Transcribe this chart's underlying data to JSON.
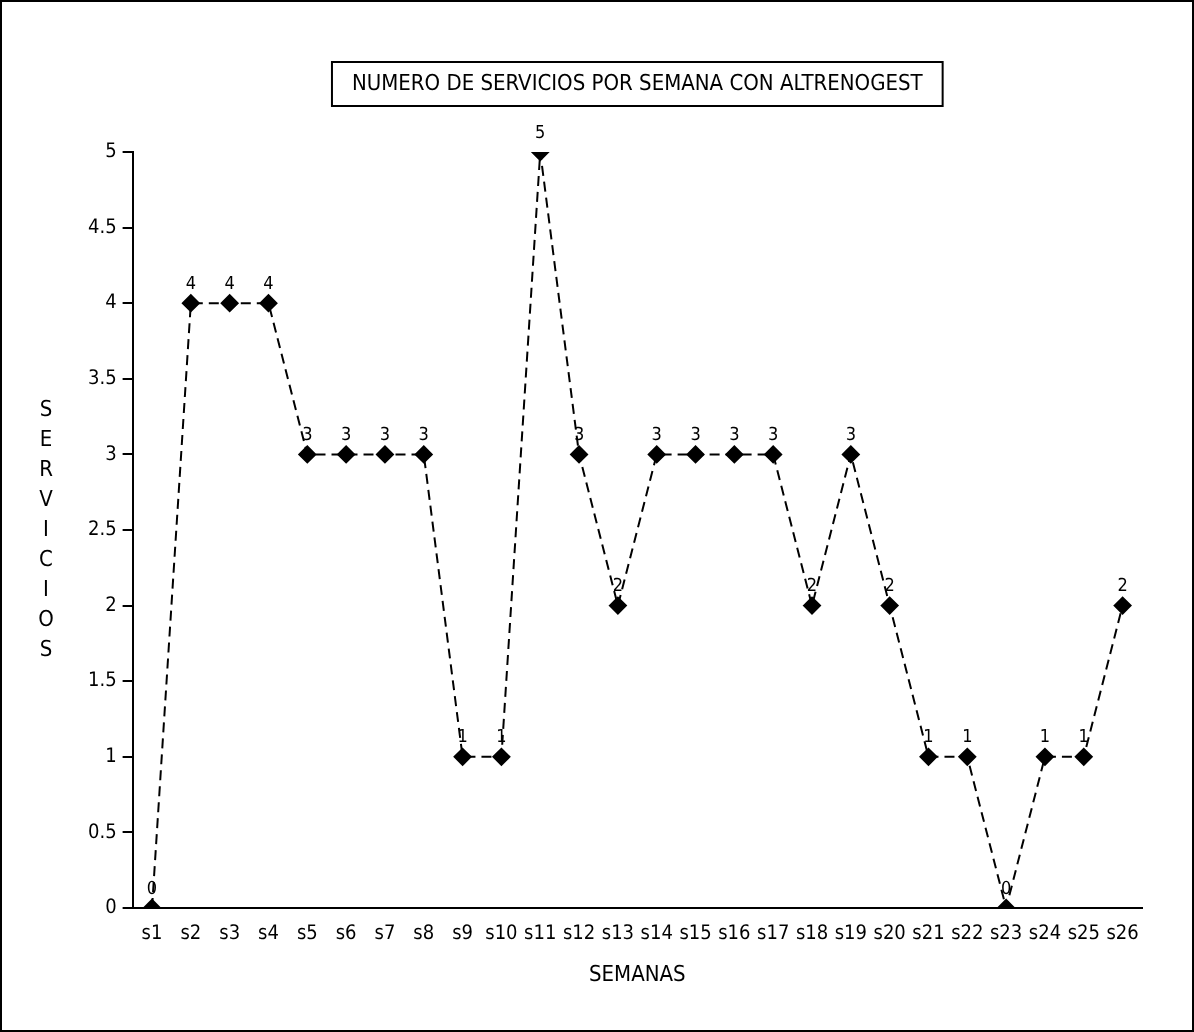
{
  "chart_data": {
    "type": "line",
    "title": "NUMERO DE SERVICIOS POR SEMANA CON ALTRENOGEST",
    "xlabel": "SEMANAS",
    "ylabel": "SERVICIOS",
    "categories": [
      "s1",
      "s2",
      "s3",
      "s4",
      "s5",
      "s6",
      "s7",
      "s8",
      "s9",
      "s10",
      "s11",
      "s12",
      "s13",
      "s14",
      "s15",
      "s16",
      "s17",
      "s18",
      "s19",
      "s20",
      "s21",
      "s22",
      "s23",
      "s24",
      "s25",
      "s26"
    ],
    "series": [
      {
        "color": "#000000",
        "values": [
          0,
          4,
          4,
          4,
          3,
          3,
          3,
          3,
          1,
          1,
          5,
          3,
          2,
          3,
          3,
          3,
          3,
          2,
          3,
          2,
          1,
          1,
          0,
          1,
          1,
          2
        ]
      }
    ],
    "ylim": [
      0,
      5
    ],
    "yticks": [
      0,
      0.5,
      1,
      1.5,
      2,
      2.5,
      3,
      3.5,
      4,
      4.5,
      5
    ],
    "grid": false,
    "legend": false,
    "marker": "diamond",
    "line_style": "dashed",
    "data_labels": true
  }
}
